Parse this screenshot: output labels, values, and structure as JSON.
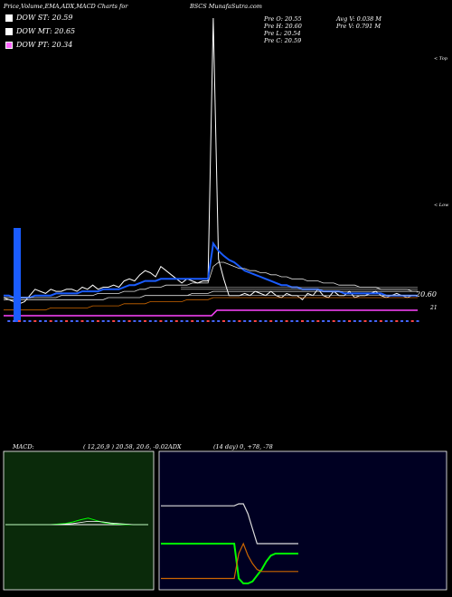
{
  "header": {
    "left": "Price,Volume,EMA,ADX,MACD Charts for",
    "right": "BSCS MunafaSutra.com"
  },
  "legend": [
    {
      "label": "DOW ST: 20.59",
      "color": "#ffffff"
    },
    {
      "label": "DOW MT: 20.65",
      "color": "#ffffff"
    },
    {
      "label": "DOW PT: 20.34",
      "color": "#ff66ff"
    }
  ],
  "stats": {
    "col1": [
      "Pre O: 20.55",
      "Pre H: 20.60",
      "Pre L: 20.54",
      "Pre C: 20.59"
    ],
    "col2": [
      "Avg V: 0.038 M",
      "Pre V: 0.791 M"
    ]
  },
  "right_labels": {
    "top": "< Top",
    "low": "< Low"
  },
  "price_label": "20.60",
  "price_label_2": "21",
  "macd_panel": {
    "title": "MACD:",
    "params": "( 12,26,9 ) 20.58, 20.6, -0.02"
  },
  "adx_panel": {
    "title": "ADX",
    "params": "(14 day) 0, +78, -78"
  },
  "colors": {
    "blue": "#1a5cff",
    "magenta": "#ff44ff",
    "orange": "#cc6600",
    "green": "#00ff00",
    "macd_bg": "#0a2a0a",
    "adx_bg": "#000022"
  },
  "chart_data": [
    {
      "type": "line",
      "name": "price",
      "x": [
        0,
        1,
        2,
        3,
        4,
        5,
        6,
        7,
        8,
        9,
        10,
        11,
        12,
        13,
        14,
        15,
        16,
        17,
        18,
        19,
        20,
        21,
        22,
        23,
        24,
        25,
        26,
        27,
        28,
        29,
        30,
        31,
        32,
        33,
        34,
        35,
        36,
        37,
        38,
        39,
        40,
        41,
        42,
        43,
        44,
        45,
        46,
        47,
        48,
        49,
        50,
        51,
        52,
        53,
        54,
        55,
        56,
        57,
        58,
        59,
        60,
        61,
        62,
        63,
        64,
        65,
        66,
        67,
        68,
        69,
        70,
        71,
        72,
        73,
        74,
        75,
        76,
        77,
        78,
        79
      ],
      "series": [
        {
          "values": [
            20.5,
            20.4,
            20.3,
            20.2,
            20.3,
            20.6,
            20.9,
            20.8,
            20.7,
            20.9,
            20.8,
            20.8,
            20.9,
            20.9,
            20.8,
            21.0,
            20.9,
            21.1,
            20.9,
            21.0,
            21.0,
            21.1,
            21.0,
            21.3,
            21.4,
            21.3,
            21.6,
            21.8,
            21.7,
            21.5,
            22.0,
            21.8,
            21.6,
            21.4,
            21.2,
            21.4,
            21.3,
            21.2,
            21.3,
            21.3,
            52.0,
            22.6,
            21.4,
            20.6,
            20.6,
            20.6,
            20.7,
            20.6,
            20.8,
            20.7,
            20.6,
            20.8,
            20.6,
            20.5,
            20.7,
            20.6,
            20.6,
            20.4,
            20.7,
            20.6,
            20.9,
            20.6,
            20.5,
            20.8,
            20.6,
            20.6,
            20.8,
            20.5,
            20.6,
            20.6,
            20.7,
            20.8,
            20.6,
            20.5,
            20.6,
            20.7,
            20.6,
            20.5,
            20.6,
            20.6
          ]
        },
        {
          "values": [
            20.6,
            20.6,
            20.5,
            20.5,
            20.5,
            20.5,
            20.6,
            20.6,
            20.6,
            20.6,
            20.7,
            20.7,
            20.7,
            20.7,
            20.7,
            20.8,
            20.8,
            20.8,
            20.8,
            20.9,
            20.9,
            20.9,
            20.9,
            21.0,
            21.1,
            21.1,
            21.2,
            21.3,
            21.3,
            21.3,
            21.4,
            21.4,
            21.4,
            21.4,
            21.4,
            21.4,
            21.4,
            21.4,
            21.4,
            21.4,
            24.5,
            23.6,
            23.0,
            22.5,
            22.2,
            22.0,
            21.8,
            21.7,
            21.6,
            21.5,
            21.4,
            21.3,
            21.2,
            21.1,
            21.1,
            21.0,
            21.0,
            20.9,
            20.9,
            20.9,
            20.9,
            20.8,
            20.8,
            20.8,
            20.8,
            20.7,
            20.7,
            20.7,
            20.7,
            20.7,
            20.7,
            20.7,
            20.7,
            20.6,
            20.6,
            20.6,
            20.6,
            20.6,
            20.6,
            20.6
          ]
        },
        {
          "values": [
            20.5,
            20.5,
            20.5,
            20.5,
            20.5,
            20.5,
            20.5,
            20.5,
            20.5,
            20.5,
            20.5,
            20.6,
            20.6,
            20.6,
            20.6,
            20.6,
            20.6,
            20.6,
            20.7,
            20.7,
            20.7,
            20.7,
            20.7,
            20.8,
            20.8,
            20.8,
            20.9,
            20.9,
            21.0,
            21.0,
            21.0,
            21.1,
            21.1,
            21.1,
            21.1,
            21.1,
            21.2,
            21.2,
            21.2,
            21.2,
            22.0,
            22.2,
            22.2,
            22.1,
            22.0,
            21.9,
            21.9,
            21.8,
            21.8,
            21.7,
            21.7,
            21.6,
            21.6,
            21.5,
            21.5,
            21.4,
            21.4,
            21.4,
            21.3,
            21.3,
            21.3,
            21.2,
            21.2,
            21.2,
            21.1,
            21.1,
            21.1,
            21.1,
            21.0,
            21.0,
            21.0,
            21.0,
            20.9,
            20.9,
            20.9,
            20.9,
            20.9,
            20.9,
            20.8,
            20.8
          ]
        },
        {
          "values": [
            20.4,
            20.4,
            20.4,
            20.4,
            20.4,
            20.4,
            20.4,
            20.4,
            20.4,
            20.4,
            20.4,
            20.4,
            20.4,
            20.4,
            20.4,
            20.4,
            20.4,
            20.4,
            20.4,
            20.4,
            20.5,
            20.5,
            20.5,
            20.5,
            20.5,
            20.5,
            20.5,
            20.6,
            20.6,
            20.6,
            20.6,
            20.6,
            20.6,
            20.6,
            20.6,
            20.6,
            20.7,
            20.7,
            20.7,
            20.7,
            20.8,
            20.8,
            20.8,
            20.8,
            20.8,
            20.8,
            20.8,
            20.8,
            20.8,
            20.8,
            20.8,
            20.8,
            20.8,
            20.8,
            20.8,
            20.8,
            20.8,
            20.8,
            20.8,
            20.8,
            20.8,
            20.8,
            20.8,
            20.8,
            20.8,
            20.8,
            20.8,
            20.8,
            20.8,
            20.8,
            20.8,
            20.8,
            20.8,
            20.8,
            20.8,
            20.8,
            20.8,
            20.8,
            20.8,
            20.8
          ]
        },
        {
          "values": [
            19.9,
            19.9,
            19.9,
            19.9,
            19.9,
            19.9,
            19.9,
            19.9,
            19.9,
            20.0,
            20.0,
            20.0,
            20.0,
            20.0,
            20.0,
            20.0,
            20.0,
            20.1,
            20.1,
            20.1,
            20.1,
            20.1,
            20.1,
            20.2,
            20.2,
            20.2,
            20.2,
            20.2,
            20.3,
            20.3,
            20.3,
            20.3,
            20.3,
            20.3,
            20.3,
            20.4,
            20.4,
            20.4,
            20.4,
            20.4,
            20.5,
            20.5,
            20.5,
            20.5,
            20.5,
            20.5,
            20.5,
            20.5,
            20.5,
            20.5,
            20.5,
            20.5,
            20.5,
            20.5,
            20.5,
            20.5,
            20.5,
            20.5,
            20.5,
            20.5,
            20.5,
            20.5,
            20.5,
            20.5,
            20.5,
            20.5,
            20.5,
            20.5,
            20.5,
            20.5,
            20.5,
            20.5,
            20.5,
            20.5,
            20.5,
            20.5,
            20.5,
            20.5,
            20.5,
            20.5
          ]
        }
      ],
      "volume": [
        12.0,
        0.3,
        0.4,
        0.2,
        0.3,
        0.5,
        0.4,
        0.3,
        0.6,
        0.4,
        0.3,
        0.5,
        0.4,
        0.3,
        0.4,
        0.5,
        0.3,
        0.4,
        0.3,
        0.5,
        0.4,
        0.3,
        0.4,
        0.5,
        0.4,
        0.3,
        0.5,
        0.6,
        0.4,
        0.3,
        0.5,
        0.4,
        0.3,
        0.4,
        0.3,
        0.5,
        0.4,
        0.3,
        0.4,
        0.5,
        0.9,
        0.6,
        0.4,
        0.3,
        0.4,
        0.5,
        0.4,
        0.3,
        0.4,
        0.3,
        0.5,
        0.4,
        0.3,
        0.4,
        0.5,
        0.4,
        0.3,
        0.4,
        0.5,
        0.4,
        0.3,
        0.4,
        0.5,
        0.4,
        0.3,
        0.4,
        0.5,
        0.3,
        0.4,
        0.5,
        0.4,
        0.3,
        0.4,
        0.5,
        0.3,
        0.4,
        0.5,
        0.4,
        0.3,
        0.4
      ]
    },
    {
      "type": "line",
      "name": "macd",
      "x": [
        0,
        1,
        2,
        3,
        4,
        5,
        6,
        7,
        8,
        9,
        10,
        11,
        12,
        13,
        14,
        15,
        16,
        17,
        18,
        19
      ],
      "series": [
        {
          "values": [
            0.0,
            0.0,
            0.0,
            0.0,
            0.0,
            0.0,
            0.0,
            0.01,
            0.02,
            0.05,
            0.09,
            0.12,
            0.08,
            0.04,
            0.02,
            0.01,
            0.0,
            0.0,
            0.0,
            0.0
          ]
        },
        {
          "values": [
            0.0,
            0.0,
            0.0,
            0.0,
            0.0,
            0.0,
            0.0,
            0.0,
            0.01,
            0.02,
            0.04,
            0.06,
            0.06,
            0.05,
            0.03,
            0.02,
            0.01,
            0.0,
            0.0,
            0.0
          ]
        }
      ],
      "ylim": [
        -0.6,
        0.6
      ]
    },
    {
      "type": "line",
      "name": "adx",
      "x": [
        0,
        1,
        2,
        3,
        4,
        5,
        6,
        7,
        8,
        9,
        10,
        11,
        12,
        13,
        14,
        15,
        16,
        17,
        18,
        19,
        20,
        21,
        22,
        23,
        24,
        25,
        26,
        27,
        28,
        29,
        30
      ],
      "series": [
        {
          "values": [
            78,
            78,
            78,
            78,
            78,
            78,
            78,
            78,
            78,
            78,
            78,
            78,
            78,
            78,
            78,
            78,
            78,
            80,
            80,
            70,
            55,
            40,
            40,
            40,
            40,
            40,
            40,
            40,
            40,
            40,
            40
          ]
        },
        {
          "values": [
            40,
            40,
            40,
            40,
            40,
            40,
            40,
            40,
            40,
            40,
            40,
            40,
            40,
            40,
            40,
            40,
            40,
            5,
            0,
            0,
            2,
            8,
            14,
            22,
            28,
            30,
            30,
            30,
            30,
            30,
            30
          ]
        },
        {
          "values": [
            5,
            5,
            5,
            5,
            5,
            5,
            5,
            5,
            5,
            5,
            5,
            5,
            5,
            5,
            5,
            5,
            5,
            30,
            40,
            28,
            20,
            14,
            12,
            12,
            12,
            12,
            12,
            12,
            12,
            12,
            12
          ]
        }
      ],
      "ylim": [
        0,
        100
      ]
    }
  ]
}
